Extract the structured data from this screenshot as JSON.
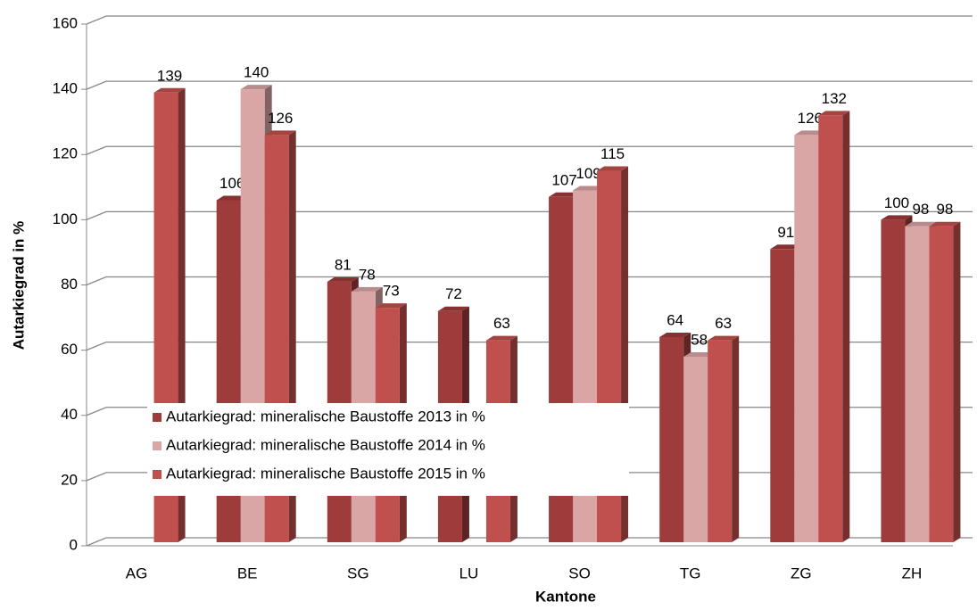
{
  "chart_data": {
    "type": "bar3d",
    "x_label": "Kantone",
    "y_label": "Autarkiegrad in %",
    "categories": [
      "AG",
      "BE",
      "SG",
      "LU",
      "SO",
      "TG",
      "ZG",
      "ZH"
    ],
    "series": [
      {
        "name": "Autarkiegrad:  mineralische Baustoffe 2013 in %",
        "color": "#9e3b3b",
        "values": [
          null,
          106,
          81,
          72,
          107,
          64,
          91,
          100
        ]
      },
      {
        "name": "Autarkiegrad:  mineralische Baustoffe 2014 in %",
        "color": "#d9a5a5",
        "values": [
          null,
          140,
          78,
          null,
          109,
          58,
          126,
          98
        ]
      },
      {
        "name": "Autarkiegrad:  mineralische Baustoffe 2015 in %",
        "color": "#c0504d",
        "values": [
          139,
          126,
          73,
          63,
          115,
          63,
          132,
          98
        ]
      }
    ],
    "ylim": [
      0,
      160
    ],
    "yticks": [
      0,
      20,
      40,
      60,
      80,
      100,
      120,
      140,
      160
    ],
    "grid": true,
    "legend": "lower left"
  }
}
